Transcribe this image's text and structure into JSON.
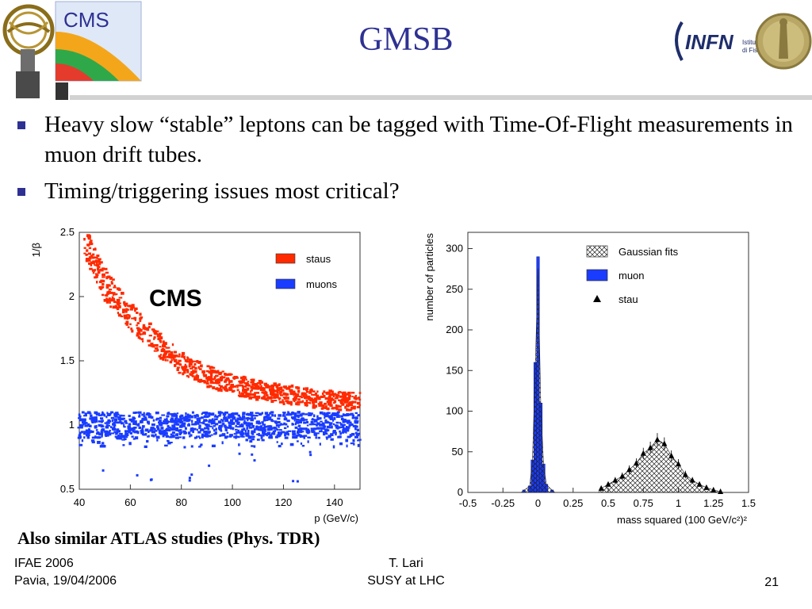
{
  "slide": {
    "title": "GMSB",
    "bullets": [
      "Heavy slow “stable” leptons can be tagged with Time-Of-Flight measurements in muon drift tubes.",
      "Timing/triggering issues most critical?"
    ],
    "caption": "Also similar ATLAS studies (Phys. TDR)",
    "footer": {
      "left_line1": "IFAE 2006",
      "left_line2": "Pavia, 19/04/2006",
      "center_line1": "T. Lari",
      "center_line2": "SUSY at LHC",
      "page_number": "21"
    },
    "logos": {
      "left_text": "CMS",
      "right_text": "INFN",
      "right_sub1": "Istituto Nazionale",
      "right_sub2": "di Fisica Nucleare"
    },
    "accent_color": "#2E3192"
  },
  "chart_data": [
    {
      "type": "scatter",
      "title": "",
      "watermark": "CMS",
      "xlabel": "p (GeV/c)",
      "ylabel": "1/β",
      "xlim": [
        40,
        150
      ],
      "ylim": [
        0.5,
        2.5
      ],
      "xticks": [
        40,
        60,
        80,
        100,
        120,
        140
      ],
      "yticks": [
        0.5,
        1,
        1.5,
        2,
        2.5
      ],
      "legend_position": "top-right",
      "series": [
        {
          "name": "staus",
          "color": "#ff2a00",
          "trend_p": [
            42,
            50,
            60,
            70,
            80,
            90,
            100,
            110,
            120,
            130,
            140,
            150
          ],
          "trend_inv_beta": [
            2.45,
            2.1,
            1.85,
            1.65,
            1.48,
            1.38,
            1.32,
            1.27,
            1.24,
            1.21,
            1.19,
            1.18
          ]
        },
        {
          "name": "muons",
          "color": "#1a3cff",
          "inv_beta_center": 1.0,
          "inv_beta_band": [
            0.83,
            1.1
          ]
        }
      ]
    },
    {
      "type": "bar",
      "title": "",
      "xlabel": "mass squared (100 GeV/c²)²",
      "ylabel": "number of particles",
      "xlim": [
        -0.5,
        1.5
      ],
      "ylim": [
        0,
        320
      ],
      "xticks": [
        "-0.5",
        "-0.25",
        "0",
        "0.25",
        "0.5",
        "0.75",
        "1",
        "1.25",
        "1.5"
      ],
      "yticks": [
        0,
        50,
        100,
        150,
        200,
        250,
        300
      ],
      "legend_position": "top-right",
      "series": [
        {
          "name": "muon",
          "color": "#1a3cff",
          "x": [
            -0.1,
            -0.06,
            -0.04,
            -0.02,
            0.0,
            0.02,
            0.04,
            0.06,
            0.1
          ],
          "y": [
            3,
            8,
            40,
            160,
            290,
            110,
            35,
            10,
            3
          ]
        },
        {
          "name": "stau",
          "marker": "triangle",
          "x": [
            0.45,
            0.5,
            0.55,
            0.6,
            0.65,
            0.7,
            0.75,
            0.8,
            0.85,
            0.9,
            0.95,
            1.0,
            1.05,
            1.1,
            1.15,
            1.2,
            1.25,
            1.3
          ],
          "y": [
            5,
            10,
            15,
            20,
            28,
            36,
            48,
            55,
            65,
            60,
            45,
            35,
            22,
            15,
            10,
            6,
            3,
            1
          ]
        },
        {
          "name": "Gaussian fits",
          "fill": "crosshatch"
        }
      ]
    }
  ]
}
